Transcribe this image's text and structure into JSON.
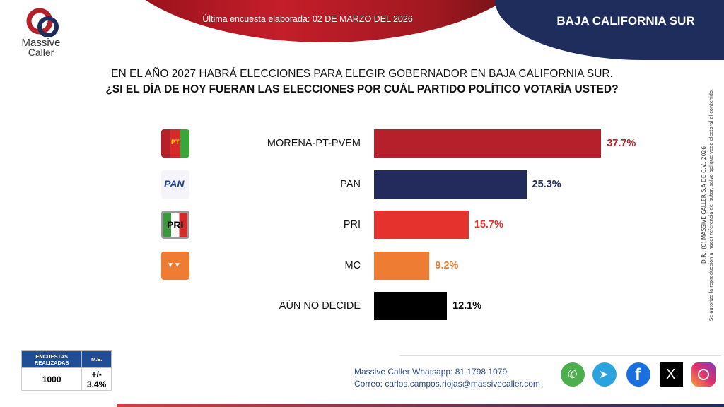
{
  "header": {
    "subtitle": "Última encuesta elaborada: 02 DE MARZO DEL 2026",
    "region": "BAJA CALIFORNIA SUR",
    "logo_line1": "Massive",
    "logo_line2": "Caller"
  },
  "question": {
    "line1": "EN EL AÑO 2027 HABRÁ ELECCIONES PARA ELEGIR GOBERNADOR EN BAJA CALIFORNIA SUR.",
    "line2": "¿SI EL DÍA DE HOY FUERAN LAS ELECCIONES POR CUÁL PARTIDO POLÍTICO VOTARÍA USTED?"
  },
  "chart_data": {
    "type": "bar",
    "orientation": "horizontal",
    "categories": [
      "MORENA-PT-PVEM",
      "PAN",
      "PRI",
      "MC",
      "AÚN NO DECIDE"
    ],
    "values": [
      37.7,
      25.3,
      15.7,
      9.2,
      12.1
    ],
    "labels": [
      "37.7%",
      "25.3%",
      "15.7%",
      "9.2%",
      "12.1%"
    ],
    "colors": [
      "#b5202a",
      "#232a5c",
      "#e5322d",
      "#ee7d33",
      "#000000"
    ],
    "label_colors": [
      "#b5202a",
      "#232a5c",
      "#e5322d",
      "#ee7d33",
      "#000000"
    ]
  },
  "logos": {
    "pt": "PT",
    "pan": "PAN",
    "pri": "PRI"
  },
  "side_notice": {
    "line1": "D.R., (C) MASSIVE CALLER S.A DE C.V., 2026",
    "line2": "Se autoriza la reproducción al hacer referencia del autor, salvo aplique veda electoral al contenido."
  },
  "stats": {
    "h1": "ENCUESTAS REALIZADAS",
    "h2": "M.E.",
    "v1": "1000",
    "v2": "+/- 3.4%"
  },
  "contact": {
    "whatsapp": "Massive Caller Whatsapp: 81 1798 1079",
    "email": "Correo: carlos.campos.riojas@massivecaller.com"
  },
  "social": [
    "whatsapp-icon",
    "telegram-icon",
    "facebook-icon",
    "x-icon",
    "instagram-icon"
  ],
  "x_label": "X"
}
